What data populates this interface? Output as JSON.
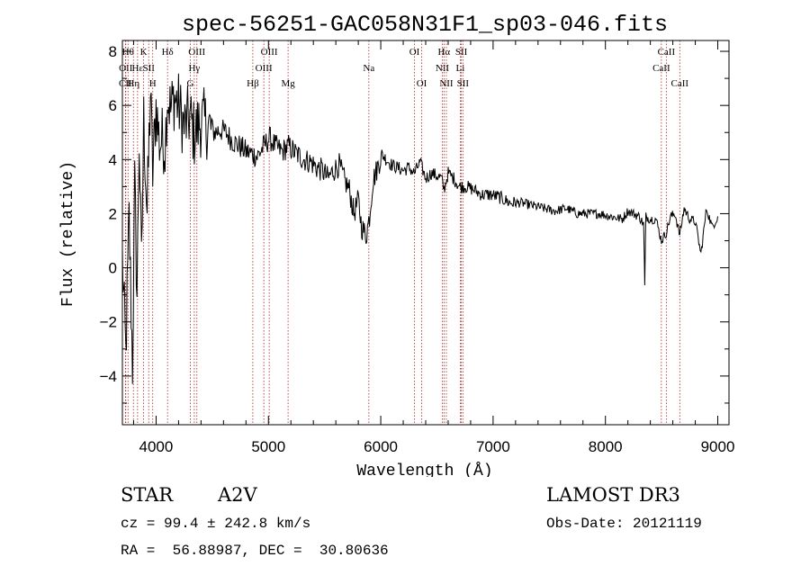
{
  "chart_data": {
    "type": "line",
    "title": "spec-56251-GAC058N31F1_sp03-046.fits",
    "xlabel": "Wavelength (Å)",
    "ylabel": "Flux (relative)",
    "xlim": [
      3700,
      9100
    ],
    "ylim": [
      -5.8,
      8.4
    ],
    "xticks": [
      4000,
      5000,
      6000,
      7000,
      8000,
      9000
    ],
    "yticks": [
      -4,
      -2,
      0,
      2,
      4,
      6,
      8
    ],
    "series": [
      {
        "name": "flux",
        "x": [
          3700,
          3730,
          3760,
          3790,
          3810,
          3830,
          3850,
          3870,
          3890,
          3920,
          3950,
          3970,
          4000,
          4030,
          4060,
          4080,
          4100,
          4130,
          4160,
          4200,
          4250,
          4300,
          4340,
          4380,
          4420,
          4470,
          4520,
          4570,
          4620,
          4680,
          4740,
          4800,
          4861,
          4900,
          4960,
          5010,
          5060,
          5120,
          5180,
          5250,
          5320,
          5380,
          5430,
          5480,
          5530,
          5580,
          5630,
          5680,
          5720,
          5760,
          5800,
          5830,
          5870,
          5900,
          5930,
          5970,
          6010,
          6050,
          6100,
          6150,
          6200,
          6250,
          6300,
          6350,
          6400,
          6450,
          6500,
          6540,
          6563,
          6600,
          6650,
          6700,
          6760,
          6820,
          6900,
          6980,
          7060,
          7150,
          7250,
          7350,
          7450,
          7550,
          7650,
          7750,
          7850,
          7950,
          8050,
          8150,
          8200,
          8250,
          8300,
          8340,
          8350,
          8360,
          8400,
          8450,
          8498,
          8542,
          8580,
          8620,
          8662,
          8700,
          8750,
          8800,
          8850,
          8900,
          8950,
          9000
        ],
        "values": [
          0.3,
          -3.2,
          1.8,
          -3.6,
          3.0,
          -1.0,
          4.8,
          0.0,
          5.5,
          2.0,
          6.5,
          3.5,
          6.0,
          4.6,
          4.8,
          4.5,
          6.4,
          5.8,
          6.3,
          6.0,
          5.2,
          5.6,
          4.9,
          5.3,
          5.4,
          5.2,
          5.0,
          5.1,
          5.0,
          4.7,
          4.5,
          4.3,
          4.2,
          4.1,
          4.5,
          4.8,
          4.5,
          4.3,
          4.5,
          4.2,
          4.0,
          3.9,
          3.7,
          3.6,
          3.3,
          3.6,
          3.8,
          3.2,
          2.9,
          2.0,
          2.5,
          1.5,
          1.2,
          1.9,
          3.2,
          3.7,
          4.2,
          4.0,
          3.8,
          3.7,
          3.6,
          3.7,
          3.5,
          3.9,
          3.3,
          3.5,
          3.4,
          3.3,
          2.9,
          3.5,
          3.3,
          3.0,
          3.0,
          2.9,
          2.7,
          2.7,
          2.6,
          2.4,
          2.4,
          2.3,
          2.2,
          2.1,
          2.2,
          2.0,
          2.0,
          2.0,
          1.9,
          1.8,
          2.1,
          2.0,
          1.9,
          1.6,
          -0.7,
          1.9,
          1.8,
          1.8,
          1.0,
          1.3,
          1.9,
          2.0,
          1.2,
          2.2,
          1.8,
          1.7,
          0.5,
          2.2,
          1.5,
          1.9
        ]
      }
    ],
    "lines": [
      {
        "label": "CII",
        "w": 3727,
        "row": 3
      },
      {
        "label": "OII",
        "w": 3730,
        "row": 2
      },
      {
        "label": "Hθ",
        "w": 3750,
        "row": 1
      },
      {
        "label": "Hη",
        "w": 3798,
        "row": 3
      },
      {
        "label": "Hε",
        "w": 3835,
        "row": 2
      },
      {
        "label": "K",
        "w": 3889,
        "row": 1
      },
      {
        "label": "SII",
        "w": 3934,
        "row": 2
      },
      {
        "label": "H",
        "w": 3970,
        "row": 3
      },
      {
        "label": "Hδ",
        "w": 4102,
        "row": 1
      },
      {
        "label": "G",
        "w": 4305,
        "row": 3
      },
      {
        "label": "Hγ",
        "w": 4340,
        "row": 2
      },
      {
        "label": "OIII",
        "w": 4363,
        "row": 1
      },
      {
        "label": "Hβ",
        "w": 4861,
        "row": 3
      },
      {
        "label": "OIII",
        "w": 4959,
        "row": 2
      },
      {
        "label": "OIII",
        "w": 5007,
        "row": 1
      },
      {
        "label": "Mg",
        "w": 5175,
        "row": 3
      },
      {
        "label": "Na",
        "w": 5894,
        "row": 2
      },
      {
        "label": "OI",
        "w": 6300,
        "row": 1
      },
      {
        "label": "OI",
        "w": 6364,
        "row": 3
      },
      {
        "label": "NII",
        "w": 6548,
        "row": 2
      },
      {
        "label": "Hα",
        "w": 6563,
        "row": 1
      },
      {
        "label": "NII",
        "w": 6584,
        "row": 3
      },
      {
        "label": "SII",
        "w": 6717,
        "row": 1
      },
      {
        "label": "Li",
        "w": 6708,
        "row": 2
      },
      {
        "label": "SII",
        "w": 6731,
        "row": 3
      },
      {
        "label": "CaII",
        "w": 8498,
        "row": 2
      },
      {
        "label": "CaII",
        "w": 8542,
        "row": 1
      },
      {
        "label": "CaII",
        "w": 8662,
        "row": 3
      }
    ]
  },
  "info": {
    "object_type": "STAR",
    "object_class": "A2V",
    "survey": "LAMOST DR3",
    "redshift": "cz = 99.4 ± 242.8 km/s",
    "obs_date": "Obs-Date: 20121119",
    "coords": "RA =  56.88987, DEC =  30.80636"
  },
  "colors": {
    "axis": "#000000",
    "spectrum": "#000000",
    "line_marker": "#b22222"
  }
}
